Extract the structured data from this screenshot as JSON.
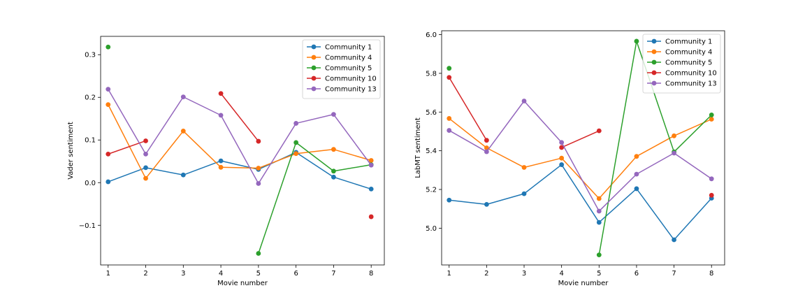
{
  "chart_data": [
    {
      "type": "line",
      "xlabel": "Movie number",
      "ylabel": "Vader sentiment",
      "x": [
        1,
        2,
        3,
        4,
        5,
        6,
        7,
        8
      ],
      "xlim": [
        0.8,
        8.35
      ],
      "ylim": [
        -0.193,
        0.343
      ],
      "xticks": [
        1,
        2,
        3,
        4,
        5,
        6,
        7,
        8
      ],
      "yticks": [
        -0.1,
        0.0,
        0.1,
        0.2,
        0.3
      ],
      "ytick_labels": [
        "−0.1",
        "0.0",
        "0.1",
        "0.2",
        "0.3"
      ],
      "grid": false,
      "legend": "upper right",
      "series": [
        {
          "name": "Community 1",
          "color": "#1f77b4",
          "values": [
            0.002,
            0.035,
            0.018,
            0.051,
            0.031,
            0.071,
            0.013,
            -0.015
          ]
        },
        {
          "name": "Community 4",
          "color": "#ff7f0e",
          "values": [
            0.183,
            0.01,
            0.121,
            0.036,
            0.034,
            0.068,
            0.078,
            0.052
          ]
        },
        {
          "name": "Community 5",
          "color": "#2ca02c",
          "values": [
            0.318,
            null,
            null,
            null,
            -0.166,
            0.094,
            0.027,
            0.042
          ]
        },
        {
          "name": "Community 10",
          "color": "#d62728",
          "values": [
            0.067,
            0.098,
            null,
            0.209,
            0.097,
            null,
            null,
            -0.08
          ]
        },
        {
          "name": "Community 13",
          "color": "#9467bd",
          "values": [
            0.219,
            0.067,
            0.201,
            0.158,
            -0.002,
            0.139,
            0.16,
            0.041
          ]
        }
      ]
    },
    {
      "type": "line",
      "xlabel": "Movie number",
      "ylabel": "LabMT sentiment",
      "x": [
        1,
        2,
        3,
        4,
        5,
        6,
        7,
        8
      ],
      "xlim": [
        0.8,
        8.35
      ],
      "ylim": [
        4.81,
        6.02
      ],
      "xticks": [
        1,
        2,
        3,
        4,
        5,
        6,
        7,
        8
      ],
      "yticks": [
        5.0,
        5.2,
        5.4,
        5.6,
        5.8,
        6.0
      ],
      "ytick_labels": [
        "5.0",
        "5.2",
        "5.4",
        "5.6",
        "5.8",
        "6.0"
      ],
      "grid": false,
      "legend": "upper right",
      "series": [
        {
          "name": "Community 1",
          "color": "#1f77b4",
          "values": [
            5.145,
            5.123,
            5.178,
            5.328,
            5.03,
            5.204,
            4.94,
            5.155
          ]
        },
        {
          "name": "Community 4",
          "color": "#ff7f0e",
          "values": [
            5.567,
            5.415,
            5.314,
            5.362,
            5.153,
            5.371,
            5.477,
            5.563
          ]
        },
        {
          "name": "Community 5",
          "color": "#2ca02c",
          "values": [
            5.826,
            null,
            null,
            null,
            4.862,
            5.966,
            5.394,
            5.585
          ]
        },
        {
          "name": "Community 10",
          "color": "#d62728",
          "values": [
            5.779,
            5.454,
            null,
            5.417,
            5.503,
            null,
            null,
            5.17
          ]
        },
        {
          "name": "Community 13",
          "color": "#9467bd",
          "values": [
            5.505,
            5.395,
            5.657,
            5.443,
            5.088,
            5.279,
            5.388,
            5.255
          ]
        }
      ]
    }
  ]
}
